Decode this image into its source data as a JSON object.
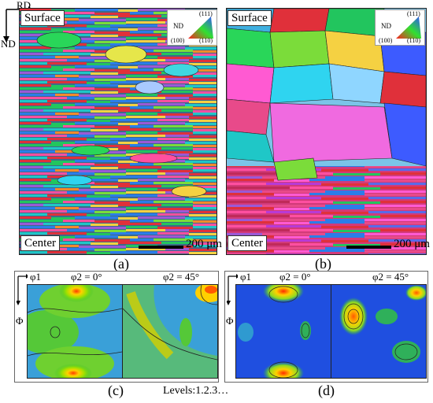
{
  "axes": {
    "rd": "RD",
    "nd": "ND"
  },
  "panels": {
    "a": {
      "top_label": "Surface",
      "bottom_label": "Center",
      "scale": "200 μm",
      "letter": "(a)"
    },
    "b": {
      "top_label": "Surface",
      "bottom_label": "Center",
      "scale": "200 μm",
      "letter": "(b)"
    },
    "c": {
      "letter": "(c)",
      "phi1": "φ1",
      "Phi": "Φ",
      "sec0": "φ2 = 0°",
      "sec45": "φ2 = 45°"
    },
    "d": {
      "letter": "(d)",
      "phi1": "φ1",
      "Phi": "Φ",
      "sec0": "φ2 = 0°",
      "sec45": "φ2 = 45°"
    }
  },
  "ipf_key": {
    "title": "ND",
    "corner_111": "(111)",
    "corner_100": "(100)",
    "corner_110": "(110)"
  },
  "levels": "Levels:1.2.3…"
}
